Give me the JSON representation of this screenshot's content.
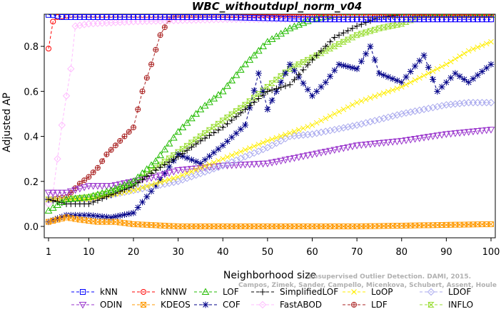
{
  "chart_data": {
    "type": "line",
    "title": "WBC_withoutdupl_norm_v04",
    "xlabel": "Neighborhood size",
    "ylabel": "Adjusted AP",
    "xlim": [
      1,
      100
    ],
    "ylim": [
      0,
      0.93
    ],
    "xticks": [
      1,
      10,
      20,
      30,
      40,
      50,
      60,
      70,
      80,
      90,
      100
    ],
    "yticks": [
      0.0,
      0.2,
      0.4,
      0.6,
      0.8
    ],
    "grid": false,
    "legend_position": "bottom",
    "credit_lines": [
      "Campos, Zimek, Sander, Campello, Micenkova, Schubert, Assent, Houle",
      "Unsupervised Outlier Detection. DAMI, 2015."
    ],
    "series": [
      {
        "name": "kNN",
        "color": "#0000ff",
        "marker": "square",
        "dash": "4,3",
        "points": [
          [
            1,
            0.94
          ],
          [
            2,
            0.94
          ],
          [
            4,
            0.93
          ],
          [
            10,
            0.93
          ],
          [
            20,
            0.93
          ],
          [
            30,
            0.93
          ],
          [
            40,
            0.93
          ],
          [
            60,
            0.92
          ],
          [
            80,
            0.92
          ],
          [
            100,
            0.92
          ]
        ]
      },
      {
        "name": "kNNW",
        "color": "#ff0000",
        "marker": "circle",
        "dash": "4,3",
        "points": [
          [
            1,
            0.79
          ],
          [
            2,
            0.91
          ],
          [
            3,
            0.93
          ],
          [
            6,
            0.94
          ],
          [
            20,
            0.94
          ],
          [
            40,
            0.94
          ],
          [
            60,
            0.94
          ],
          [
            80,
            0.94
          ],
          [
            100,
            0.94
          ]
        ]
      },
      {
        "name": "LOF",
        "color": "#22bb00",
        "marker": "triangle",
        "dash": "4,3",
        "points": [
          [
            1,
            0.07
          ],
          [
            5,
            0.12
          ],
          [
            10,
            0.13
          ],
          [
            15,
            0.16
          ],
          [
            20,
            0.2
          ],
          [
            25,
            0.29
          ],
          [
            30,
            0.42
          ],
          [
            35,
            0.52
          ],
          [
            40,
            0.6
          ],
          [
            45,
            0.72
          ],
          [
            50,
            0.82
          ],
          [
            55,
            0.88
          ],
          [
            60,
            0.92
          ],
          [
            65,
            0.94
          ],
          [
            80,
            0.94
          ],
          [
            100,
            0.94
          ]
        ]
      },
      {
        "name": "SimplifiedLOF",
        "color": "#000000",
        "marker": "plus",
        "dash": "4,3",
        "points": [
          [
            1,
            0.12
          ],
          [
            5,
            0.1
          ],
          [
            10,
            0.1
          ],
          [
            15,
            0.14
          ],
          [
            20,
            0.18
          ],
          [
            25,
            0.25
          ],
          [
            30,
            0.31
          ],
          [
            35,
            0.38
          ],
          [
            40,
            0.44
          ],
          [
            45,
            0.52
          ],
          [
            50,
            0.6
          ],
          [
            55,
            0.63
          ],
          [
            60,
            0.74
          ],
          [
            65,
            0.84
          ],
          [
            70,
            0.89
          ],
          [
            75,
            0.93
          ],
          [
            80,
            0.94
          ],
          [
            100,
            0.94
          ]
        ]
      },
      {
        "name": "LoOP",
        "color": "#ffee00",
        "marker": "cross",
        "dash": "4,3",
        "points": [
          [
            1,
            0.12
          ],
          [
            10,
            0.12
          ],
          [
            20,
            0.16
          ],
          [
            30,
            0.22
          ],
          [
            40,
            0.3
          ],
          [
            50,
            0.38
          ],
          [
            60,
            0.45
          ],
          [
            70,
            0.55
          ],
          [
            80,
            0.62
          ],
          [
            90,
            0.72
          ],
          [
            95,
            0.78
          ],
          [
            100,
            0.82
          ]
        ]
      },
      {
        "name": "LDOF",
        "color": "#aaaaee",
        "marker": "diamond",
        "dash": "4,3",
        "points": [
          [
            1,
            0.12
          ],
          [
            10,
            0.12
          ],
          [
            20,
            0.16
          ],
          [
            30,
            0.2
          ],
          [
            40,
            0.27
          ],
          [
            50,
            0.35
          ],
          [
            55,
            0.4
          ],
          [
            60,
            0.41
          ],
          [
            70,
            0.45
          ],
          [
            80,
            0.5
          ],
          [
            90,
            0.54
          ],
          [
            95,
            0.55
          ],
          [
            100,
            0.55
          ]
        ]
      },
      {
        "name": "ODIN",
        "color": "#9933cc",
        "marker": "triangle-down",
        "dash": "4,3",
        "points": [
          [
            1,
            0.15
          ],
          [
            5,
            0.15
          ],
          [
            10,
            0.18
          ],
          [
            15,
            0.18
          ],
          [
            20,
            0.2
          ],
          [
            25,
            0.22
          ],
          [
            30,
            0.25
          ],
          [
            40,
            0.27
          ],
          [
            50,
            0.28
          ],
          [
            60,
            0.32
          ],
          [
            70,
            0.36
          ],
          [
            80,
            0.38
          ],
          [
            90,
            0.41
          ],
          [
            100,
            0.43
          ]
        ]
      },
      {
        "name": "KDEOS",
        "color": "#ff9900",
        "marker": "square-cross",
        "dash": "4,3",
        "points": [
          [
            1,
            0.02
          ],
          [
            3,
            0.03
          ],
          [
            5,
            0.04
          ],
          [
            8,
            0.03
          ],
          [
            12,
            0.02
          ],
          [
            16,
            0.02
          ],
          [
            20,
            0.01
          ],
          [
            30,
            0.0
          ],
          [
            50,
            0.0
          ],
          [
            70,
            0.0
          ],
          [
            100,
            0.01
          ]
        ]
      },
      {
        "name": "COF",
        "color": "#000088",
        "marker": "asterisk",
        "dash": "4,3",
        "points": [
          [
            1,
            0.02
          ],
          [
            5,
            0.05
          ],
          [
            10,
            0.05
          ],
          [
            15,
            0.04
          ],
          [
            20,
            0.06
          ],
          [
            25,
            0.18
          ],
          [
            30,
            0.32
          ],
          [
            35,
            0.28
          ],
          [
            40,
            0.36
          ],
          [
            45,
            0.45
          ],
          [
            48,
            0.68
          ],
          [
            50,
            0.52
          ],
          [
            55,
            0.72
          ],
          [
            60,
            0.58
          ],
          [
            63,
            0.64
          ],
          [
            66,
            0.72
          ],
          [
            70,
            0.7
          ],
          [
            73,
            0.8
          ],
          [
            75,
            0.68
          ],
          [
            80,
            0.64
          ],
          [
            85,
            0.76
          ],
          [
            88,
            0.6
          ],
          [
            92,
            0.68
          ],
          [
            95,
            0.64
          ],
          [
            100,
            0.72
          ]
        ]
      },
      {
        "name": "FastABOD",
        "color": "#ffbbff",
        "marker": "diamond",
        "dash": "4,3",
        "points": [
          [
            1,
            0.1
          ],
          [
            2,
            0.15
          ],
          [
            3,
            0.3
          ],
          [
            4,
            0.45
          ],
          [
            5,
            0.58
          ],
          [
            6,
            0.7
          ],
          [
            7,
            0.89
          ],
          [
            10,
            0.9
          ],
          [
            20,
            0.91
          ],
          [
            40,
            0.92
          ],
          [
            60,
            0.92
          ],
          [
            80,
            0.92
          ],
          [
            100,
            0.92
          ]
        ]
      },
      {
        "name": "LDF",
        "color": "#aa2222",
        "marker": "circle-plus",
        "dash": "4,3",
        "points": [
          [
            1,
            0.12
          ],
          [
            5,
            0.13
          ],
          [
            8,
            0.19
          ],
          [
            10,
            0.22
          ],
          [
            12,
            0.26
          ],
          [
            14,
            0.32
          ],
          [
            16,
            0.36
          ],
          [
            18,
            0.4
          ],
          [
            20,
            0.44
          ],
          [
            22,
            0.6
          ],
          [
            24,
            0.72
          ],
          [
            26,
            0.85
          ],
          [
            28,
            0.92
          ],
          [
            30,
            0.94
          ],
          [
            100,
            0.94
          ]
        ]
      },
      {
        "name": "INFLO",
        "color": "#99dd33",
        "marker": "hourglass",
        "dash": "4,3",
        "points": [
          [
            1,
            0.12
          ],
          [
            5,
            0.12
          ],
          [
            10,
            0.13
          ],
          [
            15,
            0.15
          ],
          [
            20,
            0.19
          ],
          [
            25,
            0.26
          ],
          [
            30,
            0.33
          ],
          [
            35,
            0.4
          ],
          [
            40,
            0.47
          ],
          [
            45,
            0.54
          ],
          [
            50,
            0.62
          ],
          [
            55,
            0.7
          ],
          [
            60,
            0.75
          ],
          [
            65,
            0.8
          ],
          [
            70,
            0.85
          ],
          [
            75,
            0.88
          ],
          [
            80,
            0.9
          ],
          [
            85,
            0.94
          ],
          [
            100,
            0.94
          ]
        ]
      }
    ]
  }
}
